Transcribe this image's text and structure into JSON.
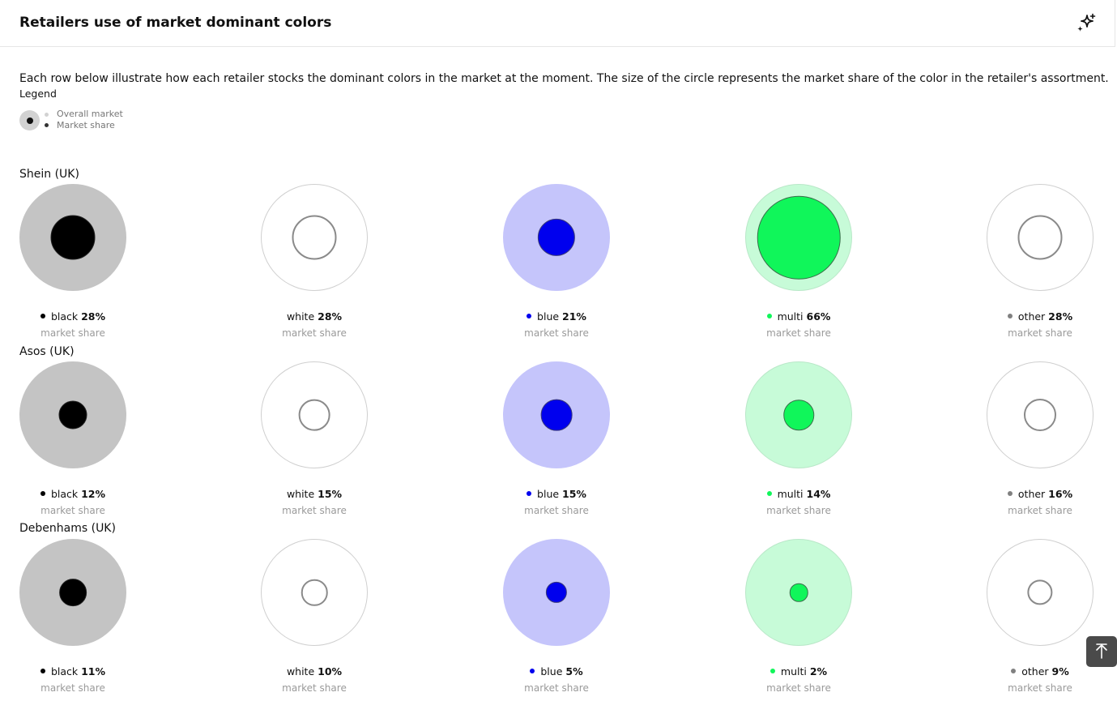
{
  "header": {
    "title": "Retailers use of market dominant colors",
    "action_icon": "sparkle-icon"
  },
  "description": "Each row below illustrate how each retailer stocks the dominant colors in the market at the moment. The size of the circle represents the market share of the color in the retailer's assortment.",
  "legend": {
    "title": "Legend",
    "overall_label": "Overall market",
    "share_label": "Market share"
  },
  "chart_data": {
    "type": "bubble-matrix",
    "colors": [
      {
        "name": "black",
        "swatch": "#000000",
        "outer_fill": "#c4c4c4",
        "outer_border": "#c4c4c4",
        "inner_fill": "#000000",
        "inner_border": "#222222",
        "show_dot": true
      },
      {
        "name": "white",
        "swatch": "#ffffff",
        "outer_fill": "#ffffff",
        "outer_border": "#cfcfcf",
        "inner_fill": "#ffffff",
        "inner_border": "#8a8a8a",
        "show_dot": false
      },
      {
        "name": "blue",
        "swatch": "#0000ee",
        "outer_fill": "#c5c5fb",
        "outer_border": "#c5c5fb",
        "inner_fill": "#0000ee",
        "inner_border": "#3a3a7a",
        "show_dot": true
      },
      {
        "name": "multi",
        "swatch": "#10f65a",
        "outer_fill": "#c7fbd8",
        "outer_border": "#b9e8c8",
        "inner_fill": "#10f65a",
        "inner_border": "#3a6e4a",
        "show_dot": true
      },
      {
        "name": "other",
        "swatch": "#808080",
        "outer_fill": "#ffffff",
        "outer_border": "#cfcfcf",
        "inner_fill": "#ffffff",
        "inner_border": "#8a8a8a",
        "show_dot": true
      }
    ],
    "value_suffix": "market share",
    "retailers": [
      {
        "name": "Shein (UK)",
        "values": [
          28,
          28,
          21,
          66,
          28
        ]
      },
      {
        "name": "Asos (UK)",
        "values": [
          12,
          15,
          15,
          14,
          16
        ]
      },
      {
        "name": "Debenhams (UK)",
        "values": [
          11,
          10,
          5,
          2,
          9
        ]
      }
    ]
  },
  "scroll_top_icon": "arrow-up-icon"
}
